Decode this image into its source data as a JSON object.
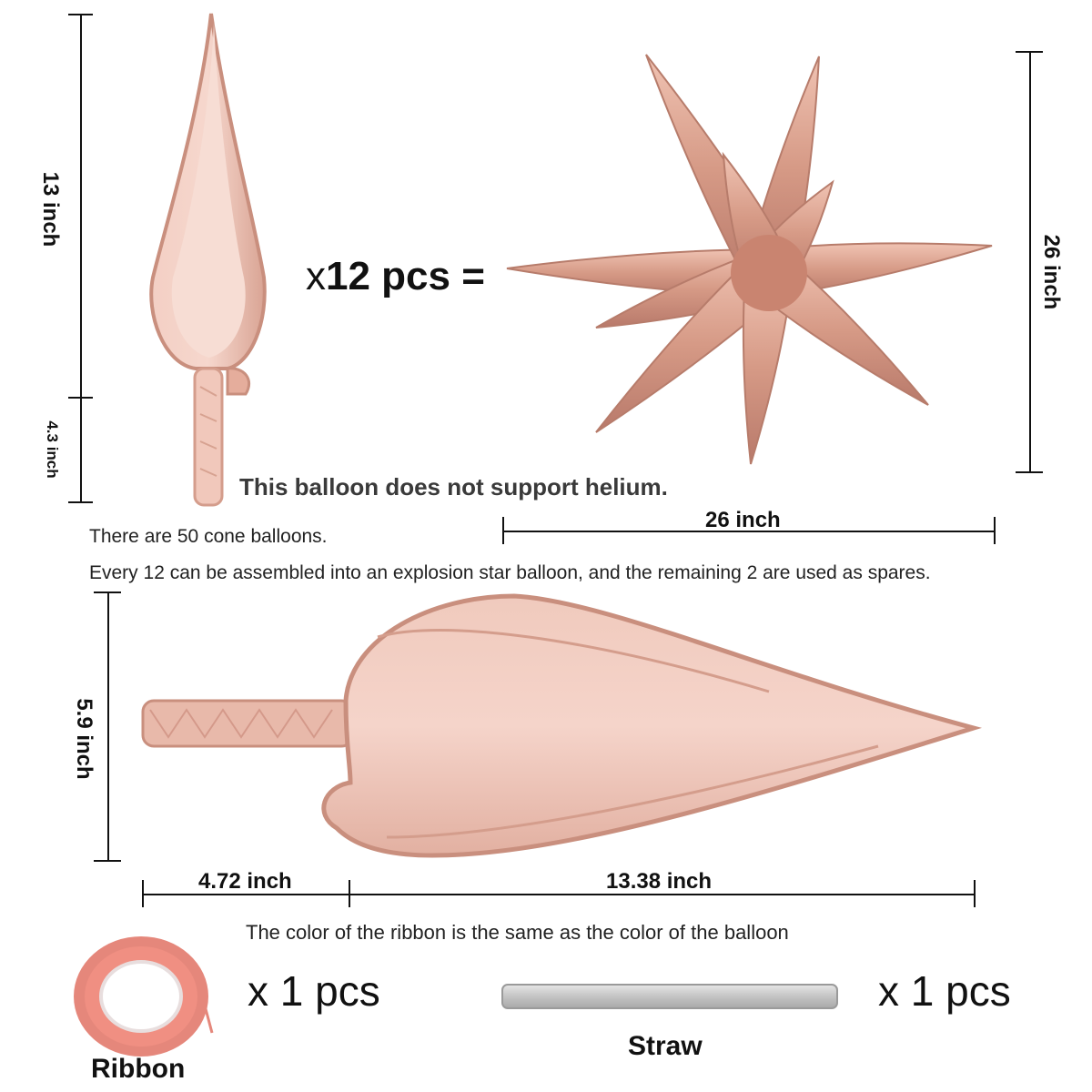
{
  "top_balloon": {
    "height_label": "13 inch",
    "stick_label": "4.3 inch"
  },
  "equation": {
    "prefix": "x",
    "count": "12 pcs ="
  },
  "star": {
    "height_label": "26 inch",
    "width_label": "26 inch"
  },
  "helium_note": "This balloon does not support helium.",
  "info_line_1": "There are 50 cone balloons.",
  "info_line_2": "Every 12 can be assembled into an explosion star balloon, and the remaining 2 are used as spares.",
  "big_balloon": {
    "height_label": "5.9 inch",
    "stick_label": "4.72 inch",
    "body_label": "13.38 inch"
  },
  "ribbon_note": "The color of the ribbon is the same as the color of the balloon",
  "ribbon": {
    "qty": "x 1 pcs",
    "label": "Ribbon"
  },
  "straw": {
    "qty": "x 1 pcs",
    "label": "Straw"
  },
  "colors": {
    "rose_gold": "#e9b8a8",
    "rose_dark": "#c98f7e",
    "straw": "#c8c8c8"
  }
}
